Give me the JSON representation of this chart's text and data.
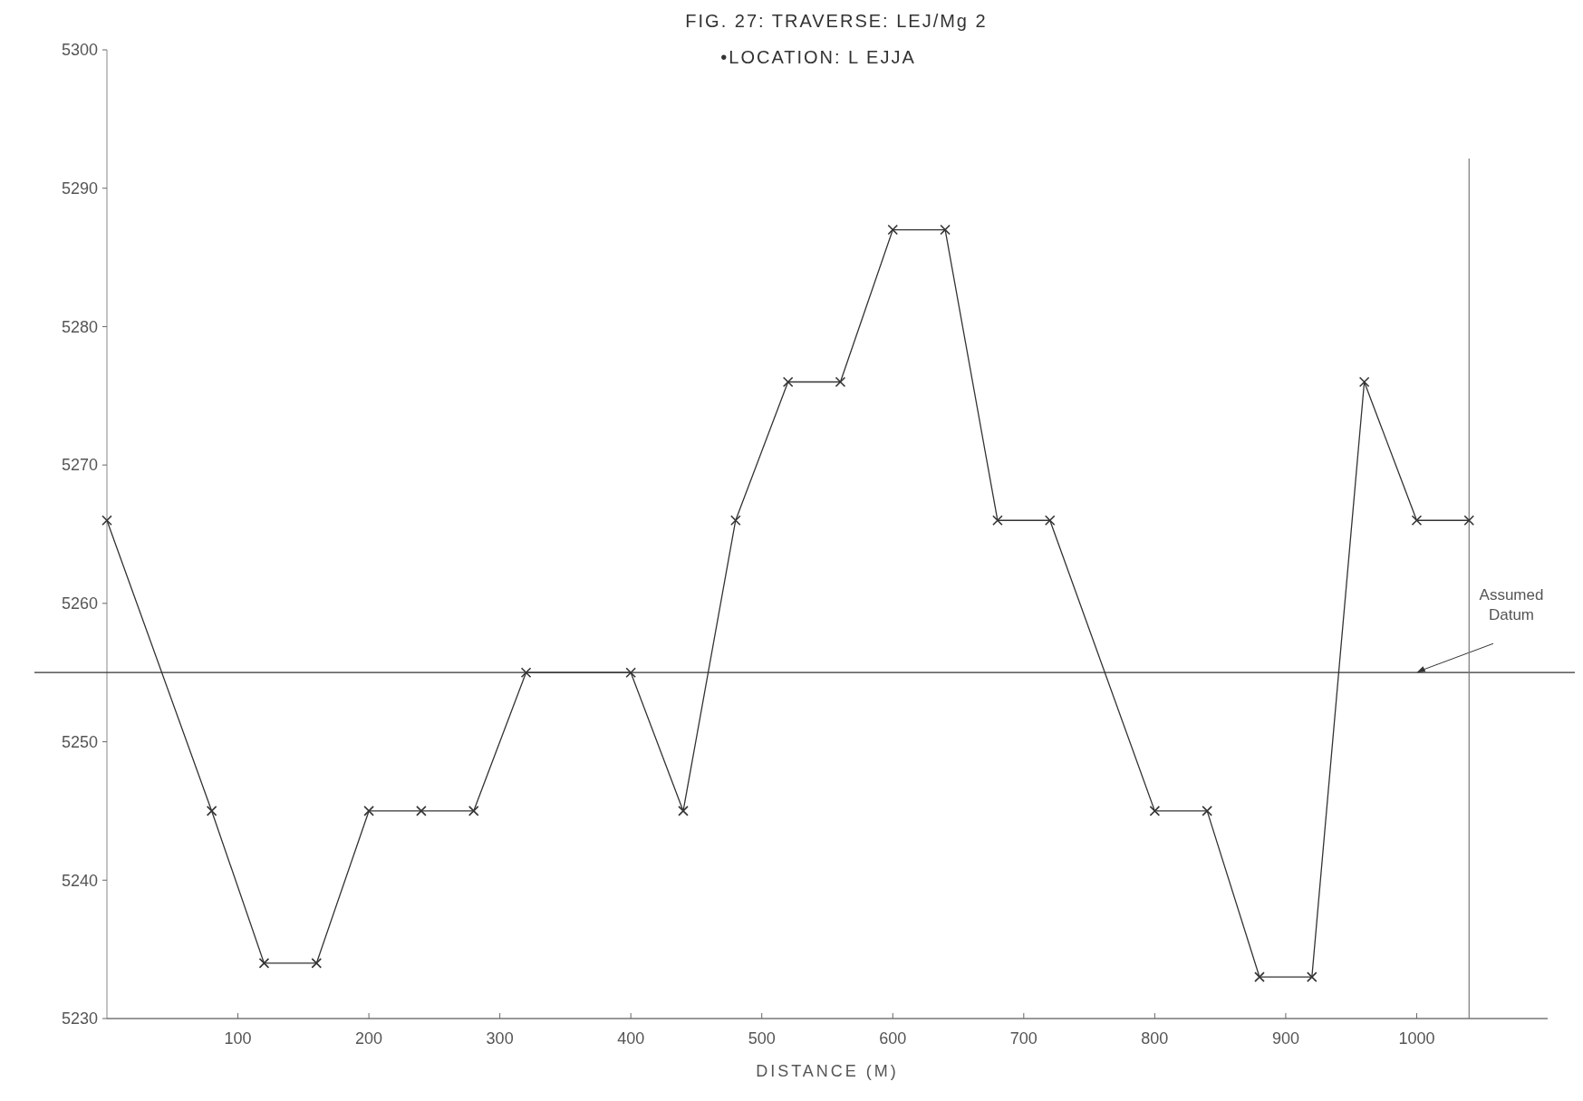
{
  "chart_data": {
    "type": "line",
    "title": "FIG. 27: TRAVERSE: LEJ/Mg 2",
    "subtitle": "•LOCATION: L EJJA",
    "xlabel": "DISTANCE (M)",
    "x": [
      0,
      80,
      120,
      160,
      200,
      240,
      280,
      320,
      400,
      440,
      480,
      520,
      560,
      600,
      640,
      680,
      720,
      800,
      840,
      880,
      920,
      960,
      1000,
      1040
    ],
    "series": [
      {
        "color": "#333333",
        "values": [
          5266,
          5245,
          5234,
          5234,
          5245,
          5245,
          5245,
          5255,
          5255,
          5245,
          5266,
          5276,
          5276,
          5287,
          5287,
          5266,
          5266,
          5245,
          5245,
          5233,
          5233,
          5276,
          5266,
          5266
        ]
      }
    ],
    "xlim": [
      0,
      1100
    ],
    "ylim": [
      5230,
      5300
    ],
    "xticks": [
      100,
      200,
      300,
      400,
      500,
      600,
      700,
      800,
      900,
      1000
    ],
    "yticks": [
      5230,
      5240,
      5250,
      5260,
      5270,
      5280,
      5290,
      5300
    ],
    "ref_lines": [
      {
        "axis": "y",
        "value": 5255,
        "label": "Assumed Datum"
      },
      {
        "axis": "x",
        "value": 1040,
        "label": null
      }
    ],
    "marker": "cross",
    "line_style": "solid",
    "grid": false
  }
}
